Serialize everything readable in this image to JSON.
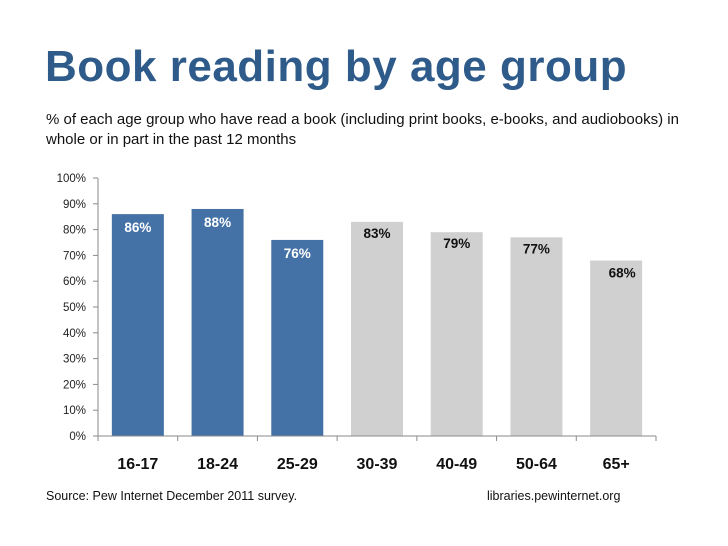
{
  "title": "Book reading by age group",
  "subtitle": "% of each age group who have read a book (including print books, e-books, and audiobooks) in whole or in part in the past 12 months",
  "source": "Source: Pew Internet December 2011 survey.",
  "credit": "libraries.pewinternet.org",
  "colors": {
    "highlight_bar": "#4472a6",
    "other_bar": "#d0d0d0",
    "highlight_label": "#ffffff",
    "other_label": "#111111",
    "title": "#2e5b8a"
  },
  "chart_data": {
    "type": "bar",
    "title": "Book reading by age group",
    "xlabel": "",
    "ylabel": "",
    "ylim": [
      0,
      100
    ],
    "yticks": [
      "0%",
      "10%",
      "20%",
      "30%",
      "40%",
      "50%",
      "60%",
      "70%",
      "80%",
      "90%",
      "100%"
    ],
    "categories": [
      "16-17",
      "18-24",
      "25-29",
      "30-39",
      "40-49",
      "50-64",
      "65+"
    ],
    "values": [
      86,
      88,
      76,
      83,
      79,
      77,
      68
    ],
    "data_labels": [
      "86%",
      "88%",
      "76%",
      "83%",
      "79%",
      "77%",
      "68%"
    ],
    "highlighted": [
      true,
      true,
      true,
      false,
      false,
      false,
      false
    ],
    "grid": false
  }
}
